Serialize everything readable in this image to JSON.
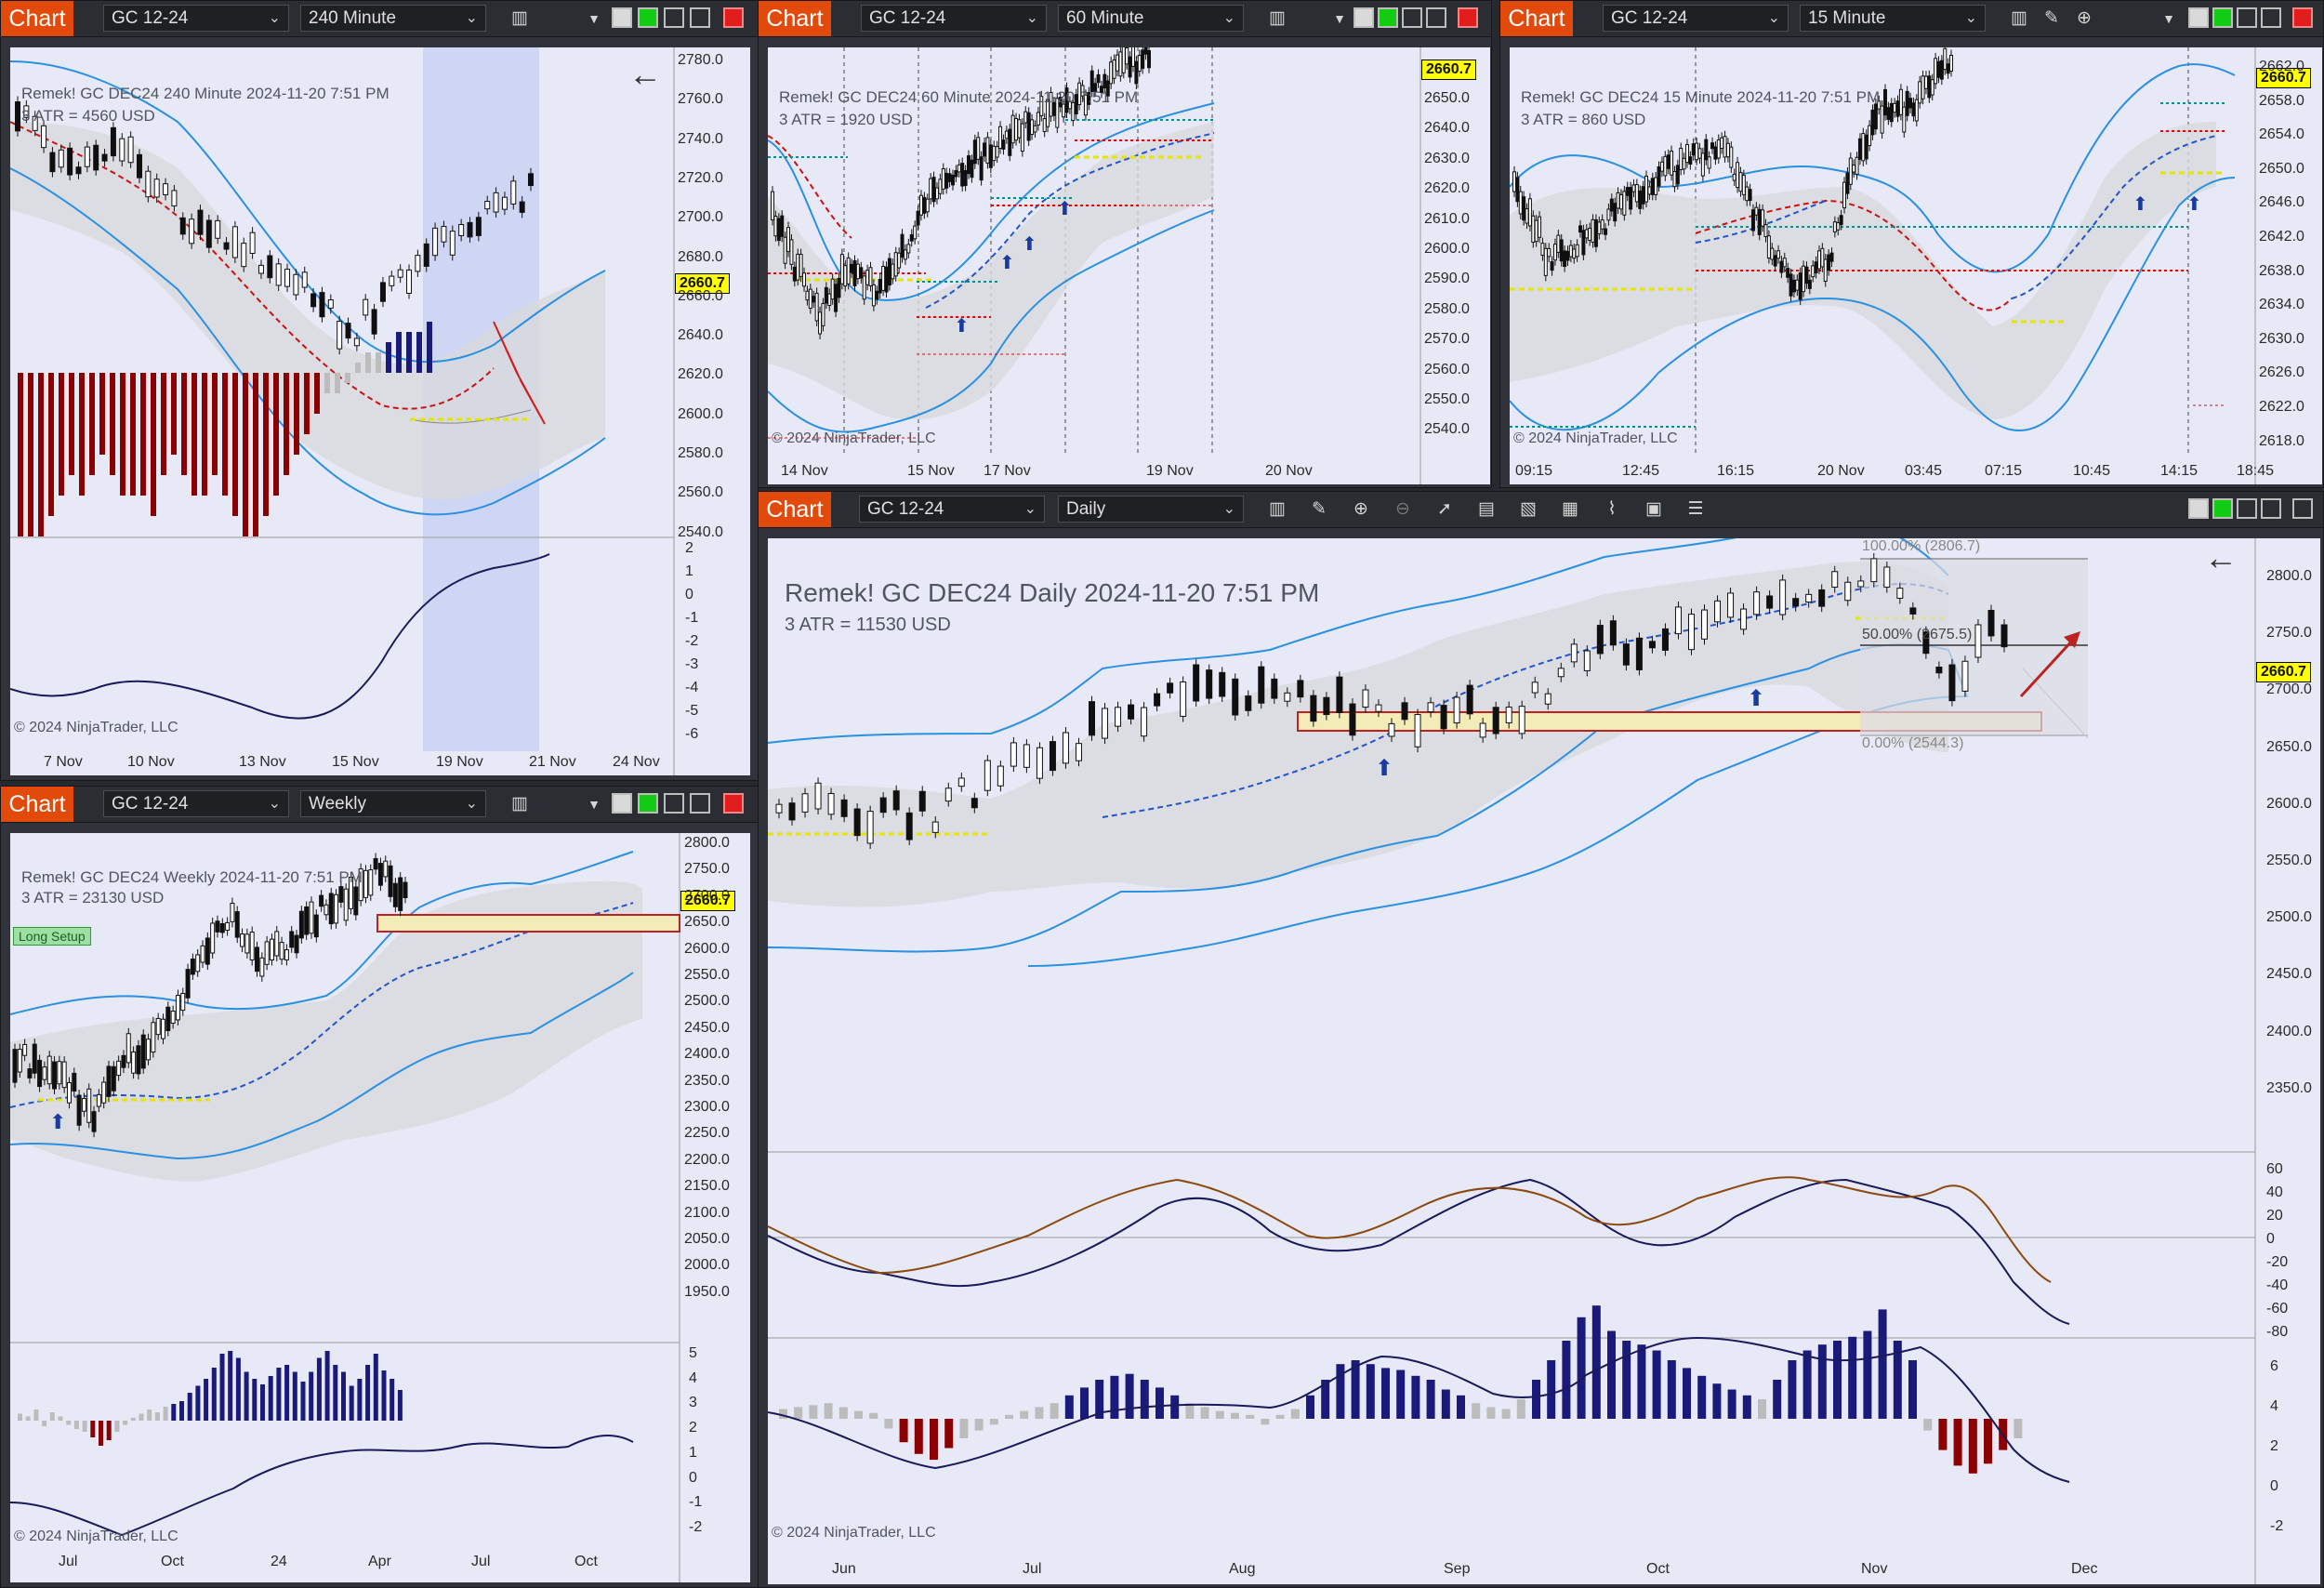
{
  "toolbar": {
    "chart_label": "Chart",
    "instrument": "GC 12-24"
  },
  "charts": {
    "c240": {
      "interval": "240 Minute",
      "header": "Remek!  GC DEC24  240 Minute  2024-11-20 7:51 PM",
      "atr": "3 ATR = 4560 USD",
      "price": "2660.7",
      "copyright": "© 2024 NinjaTrader, LLC",
      "y_labels": [
        "2780.0",
        "2760.0",
        "2740.0",
        "2720.0",
        "2700.0",
        "2680.0",
        "2660.0",
        "2640.0",
        "2620.0",
        "2600.0",
        "2580.0",
        "2560.0",
        "2540.0"
      ],
      "osc_labels": [
        "2",
        "1",
        "0",
        "-1",
        "-2",
        "-3",
        "-4",
        "-5",
        "-6"
      ],
      "x_labels": [
        "7 Nov",
        "10 Nov",
        "13 Nov",
        "15 Nov",
        "19 Nov",
        "21 Nov",
        "24 Nov"
      ]
    },
    "c60": {
      "interval": "60 Minute",
      "header": "Remek!  GC DEC24  60 Minute  2024-11-20 7:51 PM",
      "atr": "3 ATR = 1920 USD",
      "price": "2660.7",
      "copyright": "© 2024 NinjaTrader, LLC",
      "y_labels": [
        "2650.0",
        "2640.0",
        "2630.0",
        "2620.0",
        "2610.0",
        "2600.0",
        "2590.0",
        "2580.0",
        "2570.0",
        "2560.0",
        "2550.0",
        "2540.0"
      ],
      "x_labels": [
        "14 Nov",
        "15 Nov",
        "17 Nov",
        "19 Nov",
        "20 Nov"
      ]
    },
    "c15": {
      "interval": "15 Minute",
      "header": "Remek!  GC DEC24  15 Minute  2024-11-20 7:51 PM",
      "atr": "3 ATR = 860 USD",
      "price": "2660.7",
      "copyright": "© 2024 NinjaTrader, LLC",
      "y_labels": [
        "2662.0",
        "2658.0",
        "2654.0",
        "2650.0",
        "2646.0",
        "2642.0",
        "2638.0",
        "2634.0",
        "2630.0",
        "2626.0",
        "2622.0",
        "2618.0"
      ],
      "x_labels": [
        "09:15",
        "12:45",
        "16:15",
        "20 Nov",
        "03:45",
        "07:15",
        "10:45",
        "14:15",
        "18:45"
      ]
    },
    "cweekly": {
      "interval": "Weekly",
      "header": "Remek!  GC DEC24  Weekly  2024-11-20 7:51 PM",
      "atr": "3 ATR = 23130 USD",
      "tag": "Long Setup",
      "price": "2660.7",
      "copyright": "© 2024 NinjaTrader, LLC",
      "y_labels": [
        "2800.0",
        "2750.0",
        "2700.0",
        "2650.0",
        "2600.0",
        "2550.0",
        "2500.0",
        "2450.0",
        "2400.0",
        "2350.0",
        "2300.0",
        "2250.0",
        "2200.0",
        "2150.0",
        "2100.0",
        "2050.0",
        "2000.0",
        "1950.0"
      ],
      "osc_labels": [
        "5",
        "4",
        "3",
        "2",
        "1",
        "0",
        "-1",
        "-2"
      ],
      "x_labels": [
        "Jul",
        "Oct",
        "24",
        "Apr",
        "Jul",
        "Oct"
      ]
    },
    "cdaily": {
      "interval": "Daily",
      "header": "Remek!  GC DEC24  Daily  2024-11-20 7:51 PM",
      "atr": "3 ATR = 11530 USD",
      "price": "2660.7",
      "copyright": "© 2024 NinjaTrader, LLC",
      "fib_100": "100.00% (2806.7)",
      "fib_50": "50.00% (2675.5)",
      "fib_0": "0.00% (2544.3)",
      "y_labels": [
        "2800.0",
        "2750.0",
        "2700.0",
        "2650.0",
        "2600.0",
        "2550.0",
        "2500.0",
        "2450.0",
        "2400.0",
        "2350.0"
      ],
      "osc1_labels": [
        "60",
        "40",
        "20",
        "0",
        "-20",
        "-40",
        "-60",
        "-80"
      ],
      "osc2_labels": [
        "6",
        "4",
        "2",
        "0",
        "-2"
      ],
      "x_labels": [
        "Jun",
        "Jul",
        "Aug",
        "Sep",
        "Oct",
        "Nov",
        "Dec"
      ]
    }
  },
  "colors": {
    "chart_btn": "#e24a0c",
    "panel_bg": "#e8e9f6",
    "band": "#2f8fe0",
    "red_band": "#cc1111",
    "blue_band": "#2255cc",
    "price": "#ffff00",
    "hist_up": "#1a1a7a",
    "hist_down": "#8b0000",
    "hist_neutral": "#bcbcbc"
  }
}
